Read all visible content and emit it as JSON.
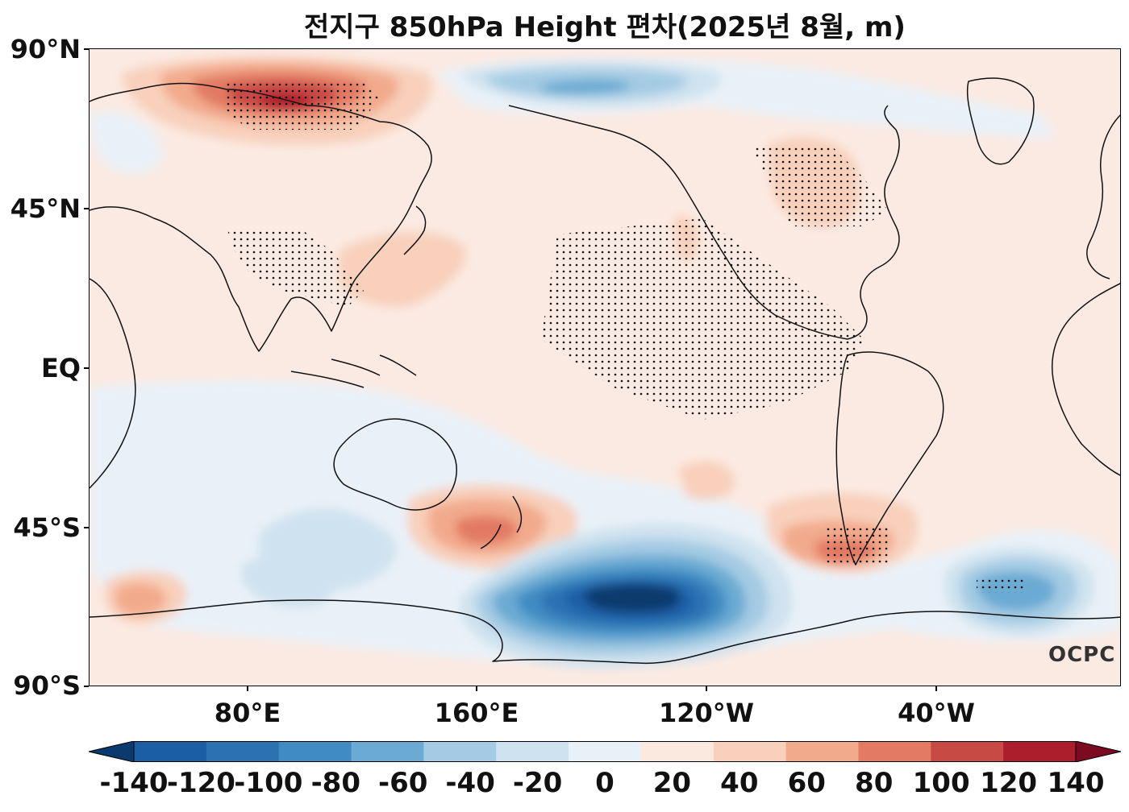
{
  "title": "전지구 850hPa Height 편차(2025년 8월, m)",
  "watermark": "OCPC",
  "latitude_labels": [
    "90°N",
    "45°N",
    "EQ",
    "45°S",
    "90°S"
  ],
  "longitude_labels": [
    "80°E",
    "160°E",
    "120°W",
    "40°W"
  ],
  "colorbar": {
    "tick_labels": [
      "-140",
      "-120",
      "-100",
      "-80",
      "-60",
      "-40",
      "-20",
      "0",
      "20",
      "40",
      "60",
      "80",
      "100",
      "120",
      "140"
    ],
    "levels": [
      -140,
      -120,
      -100,
      -80,
      -60,
      -40,
      -20,
      0,
      20,
      40,
      60,
      80,
      100,
      120,
      140
    ],
    "colors": [
      "#0a3a6e",
      "#1b5ea6",
      "#2b72b3",
      "#3f8bc2",
      "#6aaad3",
      "#a4cbe3",
      "#cfe2ef",
      "#e9f1f8",
      "#fbe9e0",
      "#f8d0bc",
      "#f2aa8c",
      "#e27a64",
      "#c84a44",
      "#ad1e2c",
      "#7c0a20"
    ]
  },
  "colors": {
    "background": "#fbeae2",
    "coast": "#111111",
    "stipple": "#111111"
  }
}
